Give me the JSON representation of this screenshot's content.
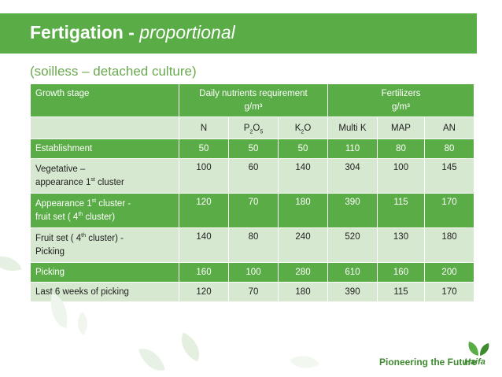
{
  "slide": {
    "title_bold": "Fertigation  -",
    "title_italic": "proportional",
    "subtitle": "(soilless – detached culture)"
  },
  "table": {
    "header": {
      "growth_stage": "Growth   stage",
      "daily_line1": "Daily nutrients requirement",
      "daily_line2": "g/m³",
      "fert_line1": "Fertilizers",
      "fert_line2": "g/m³"
    },
    "subheader": {
      "n": "N",
      "p2o5_a": "P",
      "p2o5_b": "2",
      "p2o5_c": "O",
      "p2o5_d": "5",
      "k2o_a": "K",
      "k2o_b": "2",
      "k2o_c": "O",
      "multik": "Multi K",
      "map": "MAP",
      "an": "AN"
    },
    "rows": [
      {
        "stage": "Establishment",
        "values": [
          "50",
          "50",
          "50",
          "110",
          "80",
          "80"
        ]
      },
      {
        "stage_l1": "Vegetative –",
        "stage_l2a": "appearance 1",
        "stage_l2sup": "st",
        "stage_l2b": "  cluster",
        "values": [
          "100",
          "60",
          "140",
          "304",
          "100",
          "145"
        ]
      },
      {
        "stage_l1a": "Appearance 1",
        "stage_l1sup": "st",
        "stage_l1b": "  cluster -",
        "stage_l2a": "fruit set ( 4",
        "stage_l2sup": "th",
        "stage_l2b": " cluster)",
        "values": [
          "120",
          "70",
          "180",
          "390",
          "115",
          "170"
        ]
      },
      {
        "stage_l1a": "Fruit set ( 4",
        "stage_l1sup": "th",
        "stage_l1b": " cluster) -",
        "stage_l2": "Picking",
        "values": [
          "140",
          "80",
          "240",
          "520",
          "130",
          "180"
        ]
      },
      {
        "stage": "Picking",
        "values": [
          "160",
          "100",
          "280",
          "610",
          "160",
          "200"
        ]
      },
      {
        "stage": "Last 6 weeks of picking",
        "values": [
          "120",
          "70",
          "180",
          "390",
          "115",
          "170"
        ]
      }
    ]
  },
  "footer": {
    "tagline": "Pioneering the Future",
    "logo_text": "Haifa"
  },
  "colors": {
    "accent": "#5aac46",
    "light": "#d6e8cf"
  }
}
